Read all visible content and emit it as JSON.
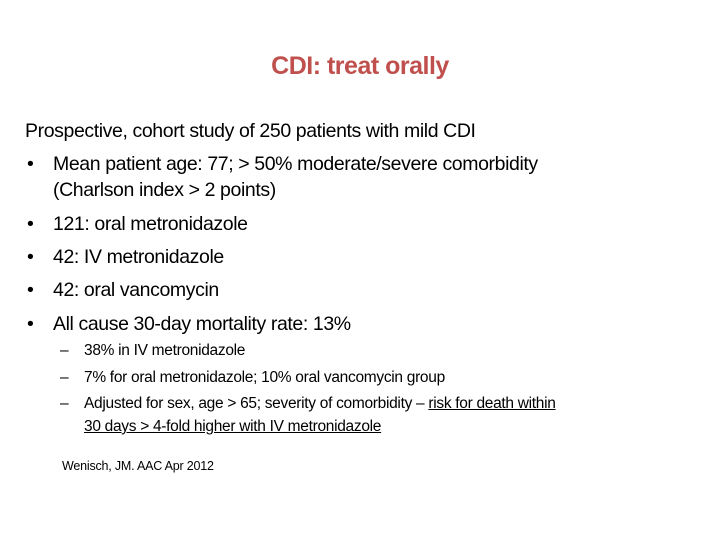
{
  "title": "CDI:  treat orally",
  "intro": "Prospective, cohort study of 250 patients with mild CDI",
  "bullets": [
    {
      "line1": "Mean patient age:  77; > 50% moderate/severe comorbidity",
      "line2": "(Charlson index > 2 points)"
    },
    {
      "line1": "121:  oral metronidazole"
    },
    {
      "line1": "42:  IV metronidazole"
    },
    {
      "line1": "42:  oral vancomycin"
    },
    {
      "line1": "All cause 30-day mortality rate:  13%"
    }
  ],
  "sub_bullets": [
    {
      "text": "38% in IV metronidazole"
    },
    {
      "text": "7% for oral metronidazole; 10% oral vancomycin group"
    },
    {
      "text": "Adjusted for sex, age > 65; severity of comorbidity – ",
      "underlined_1": "risk for death within",
      "underlined_2": "30 days > 4-fold higher with IV metronidazole"
    }
  ],
  "citation": "Wenisch, JM.  AAC Apr 2012",
  "bullet_char": "•",
  "dash_char": "–",
  "colors": {
    "title": "#C0504D",
    "text": "#000000"
  }
}
